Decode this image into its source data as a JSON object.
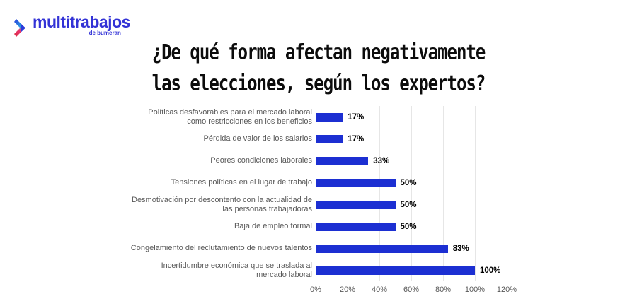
{
  "logo": {
    "brand": "multitrabajos",
    "subbrand": "de bumeran",
    "brand_color": "#3333d6",
    "chevron_blue": "#2b3ad9",
    "chevron_cyan": "#29c5e8",
    "chevron_pink": "#e8356d"
  },
  "title": {
    "line1": "¿De qué forma afectan negativamente",
    "line2": "las elecciones, según los expertos?"
  },
  "chart_data": {
    "type": "bar",
    "orientation": "horizontal",
    "title": "¿De qué forma afectan negativamente las elecciones, según los expertos?",
    "categories": [
      "Políticas desfavorables para el mercado laboral\ncomo restricciones en los beneficios",
      "Pérdida de valor de los salarios",
      "Peores condiciones laborales",
      "Tensiones políticas en el lugar de trabajo",
      "Desmotivación por descontento con la actualidad de\nlas personas trabajadoras",
      "Baja de empleo formal",
      "Congelamiento del reclutamiento de nuevos talentos",
      "Incertidumbre económica que se traslada al\nmercado laboral"
    ],
    "values": [
      17,
      17,
      33,
      50,
      50,
      50,
      83,
      100
    ],
    "value_labels": [
      "17%",
      "17%",
      "33%",
      "50%",
      "50%",
      "50%",
      "83%",
      "100%"
    ],
    "x_ticks": [
      {
        "label": "0%",
        "value": 0
      },
      {
        "label": "20%",
        "value": 20
      },
      {
        "label": "40%",
        "value": 40
      },
      {
        "label": "60%",
        "value": 60
      },
      {
        "label": "80%",
        "value": 80
      },
      {
        "label": "100%",
        "value": 100
      },
      {
        "label": "120%",
        "value": 120
      }
    ],
    "xlim": [
      0,
      120
    ],
    "xlabel": "",
    "ylabel": "",
    "grid": "vertical",
    "legend": "none",
    "bar_color": "#1c2fd2",
    "label_color": "#595959",
    "value_label_color": "#000000",
    "gridline_color": "#e6e6e6"
  }
}
